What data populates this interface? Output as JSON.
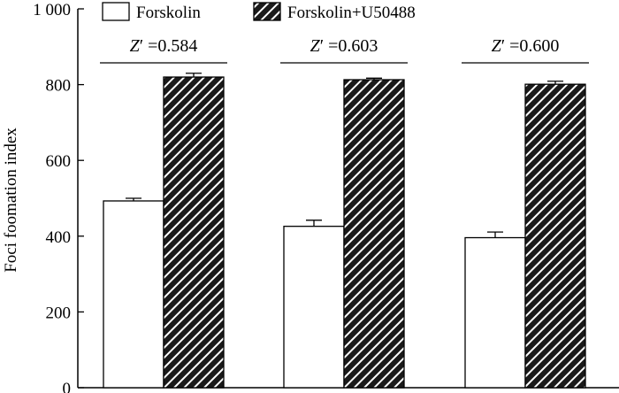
{
  "chart_data": {
    "type": "bar",
    "ylabel": "Foci foomation index",
    "ylim": [
      0,
      1000
    ],
    "yticks": [
      0,
      200,
      400,
      600,
      800,
      1000
    ],
    "ytick_labels": [
      "0",
      "200",
      "400",
      "600",
      "800",
      "1 000"
    ],
    "groups": 3,
    "series": [
      {
        "name": "Forskolin",
        "values": [
          493,
          426,
          396
        ],
        "errors": [
          7,
          16,
          15
        ]
      },
      {
        "name": "Forskolin+U50488",
        "values": [
          820,
          813,
          801
        ],
        "errors": [
          10,
          4,
          8
        ]
      }
    ],
    "annotations": [
      {
        "prefix": "Z",
        "prime": "′",
        "value": "=0.584"
      },
      {
        "prefix": "Z",
        "prime": "′",
        "value": "=0.603"
      },
      {
        "prefix": "Z",
        "prime": "′",
        "value": "=0.600"
      }
    ],
    "legend_position": "top",
    "grid": false
  },
  "colors": {
    "series1_fill": "#ffffff",
    "series2_fill": "#1a1a1a",
    "hatch": "#ffffff"
  }
}
